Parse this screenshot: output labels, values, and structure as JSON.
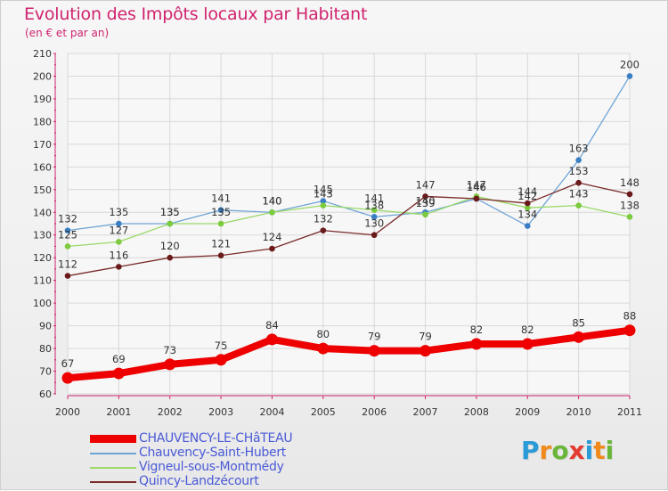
{
  "title": "Evolution des Impôts locaux par Habitant",
  "subtitle": "(en € et par an)",
  "logo": {
    "text": "Proxiti",
    "letters": [
      "P",
      "r",
      "o",
      "x",
      "i",
      "t",
      "i"
    ],
    "letter_colors": [
      "#2a9bd6",
      "#f18a1c",
      "#6ab63a",
      "#e33b2f",
      "#2a9bd6",
      "#f18a1c",
      "#6ab63a"
    ]
  },
  "chart_data": {
    "type": "line",
    "title": "Evolution des Impôts locaux par Habitant",
    "subtitle": "(en € et par an)",
    "xlabel": "",
    "ylabel": "",
    "ylim": [
      60,
      210
    ],
    "y_ticks": [
      60,
      70,
      80,
      90,
      100,
      110,
      120,
      130,
      140,
      150,
      160,
      170,
      180,
      190,
      200,
      210
    ],
    "grid": true,
    "legend_position": "bottom-left",
    "categories": [
      "2000",
      "2001",
      "2002",
      "2003",
      "2004",
      "2005",
      "2006",
      "2007",
      "2008",
      "2009",
      "2010",
      "2011"
    ],
    "series": [
      {
        "name": "CHAUVENCY-LE-CHâTEAU",
        "color": "#ee0000",
        "marker_color": "#ee0000",
        "emphasis": "bold",
        "values": [
          67,
          69,
          73,
          75,
          84,
          80,
          79,
          79,
          82,
          82,
          85,
          88
        ],
        "labels": [
          "67",
          "69",
          "73",
          "75",
          "84",
          "80",
          "79",
          "79",
          "82",
          "82",
          "85",
          "88"
        ]
      },
      {
        "name": "Chauvency-Saint-Hubert",
        "color": "#6fa4d6",
        "marker_color": "#3a7fc4",
        "emphasis": "normal",
        "values": [
          132,
          135,
          135,
          141,
          140,
          145,
          138,
          140,
          146,
          134,
          163,
          200
        ],
        "labels": [
          "132",
          "135",
          "135",
          "141",
          "140",
          "145",
          "138",
          "140",
          "146",
          "134",
          "163",
          "200"
        ]
      },
      {
        "name": "Vigneul-sous-Montmédy",
        "color": "#9ad968",
        "marker_color": "#7ccb3e",
        "emphasis": "normal",
        "values": [
          125,
          127,
          135,
          135,
          140,
          143,
          141,
          139,
          147,
          142,
          143,
          138
        ],
        "labels": [
          "125",
          "127",
          "135",
          "135",
          "140",
          "143",
          "141",
          "139",
          "147",
          "142",
          "143",
          "138"
        ]
      },
      {
        "name": "Quincy-Landzécourt",
        "color": "#7a2a2a",
        "marker_color": "#6a1a1a",
        "emphasis": "normal",
        "values": [
          112,
          116,
          120,
          121,
          124,
          132,
          130,
          147,
          146,
          144,
          153,
          148
        ],
        "labels": [
          "112",
          "116",
          "120",
          "121",
          "124",
          "132",
          "130",
          "147",
          "146",
          "144",
          "153",
          "148"
        ]
      }
    ]
  }
}
